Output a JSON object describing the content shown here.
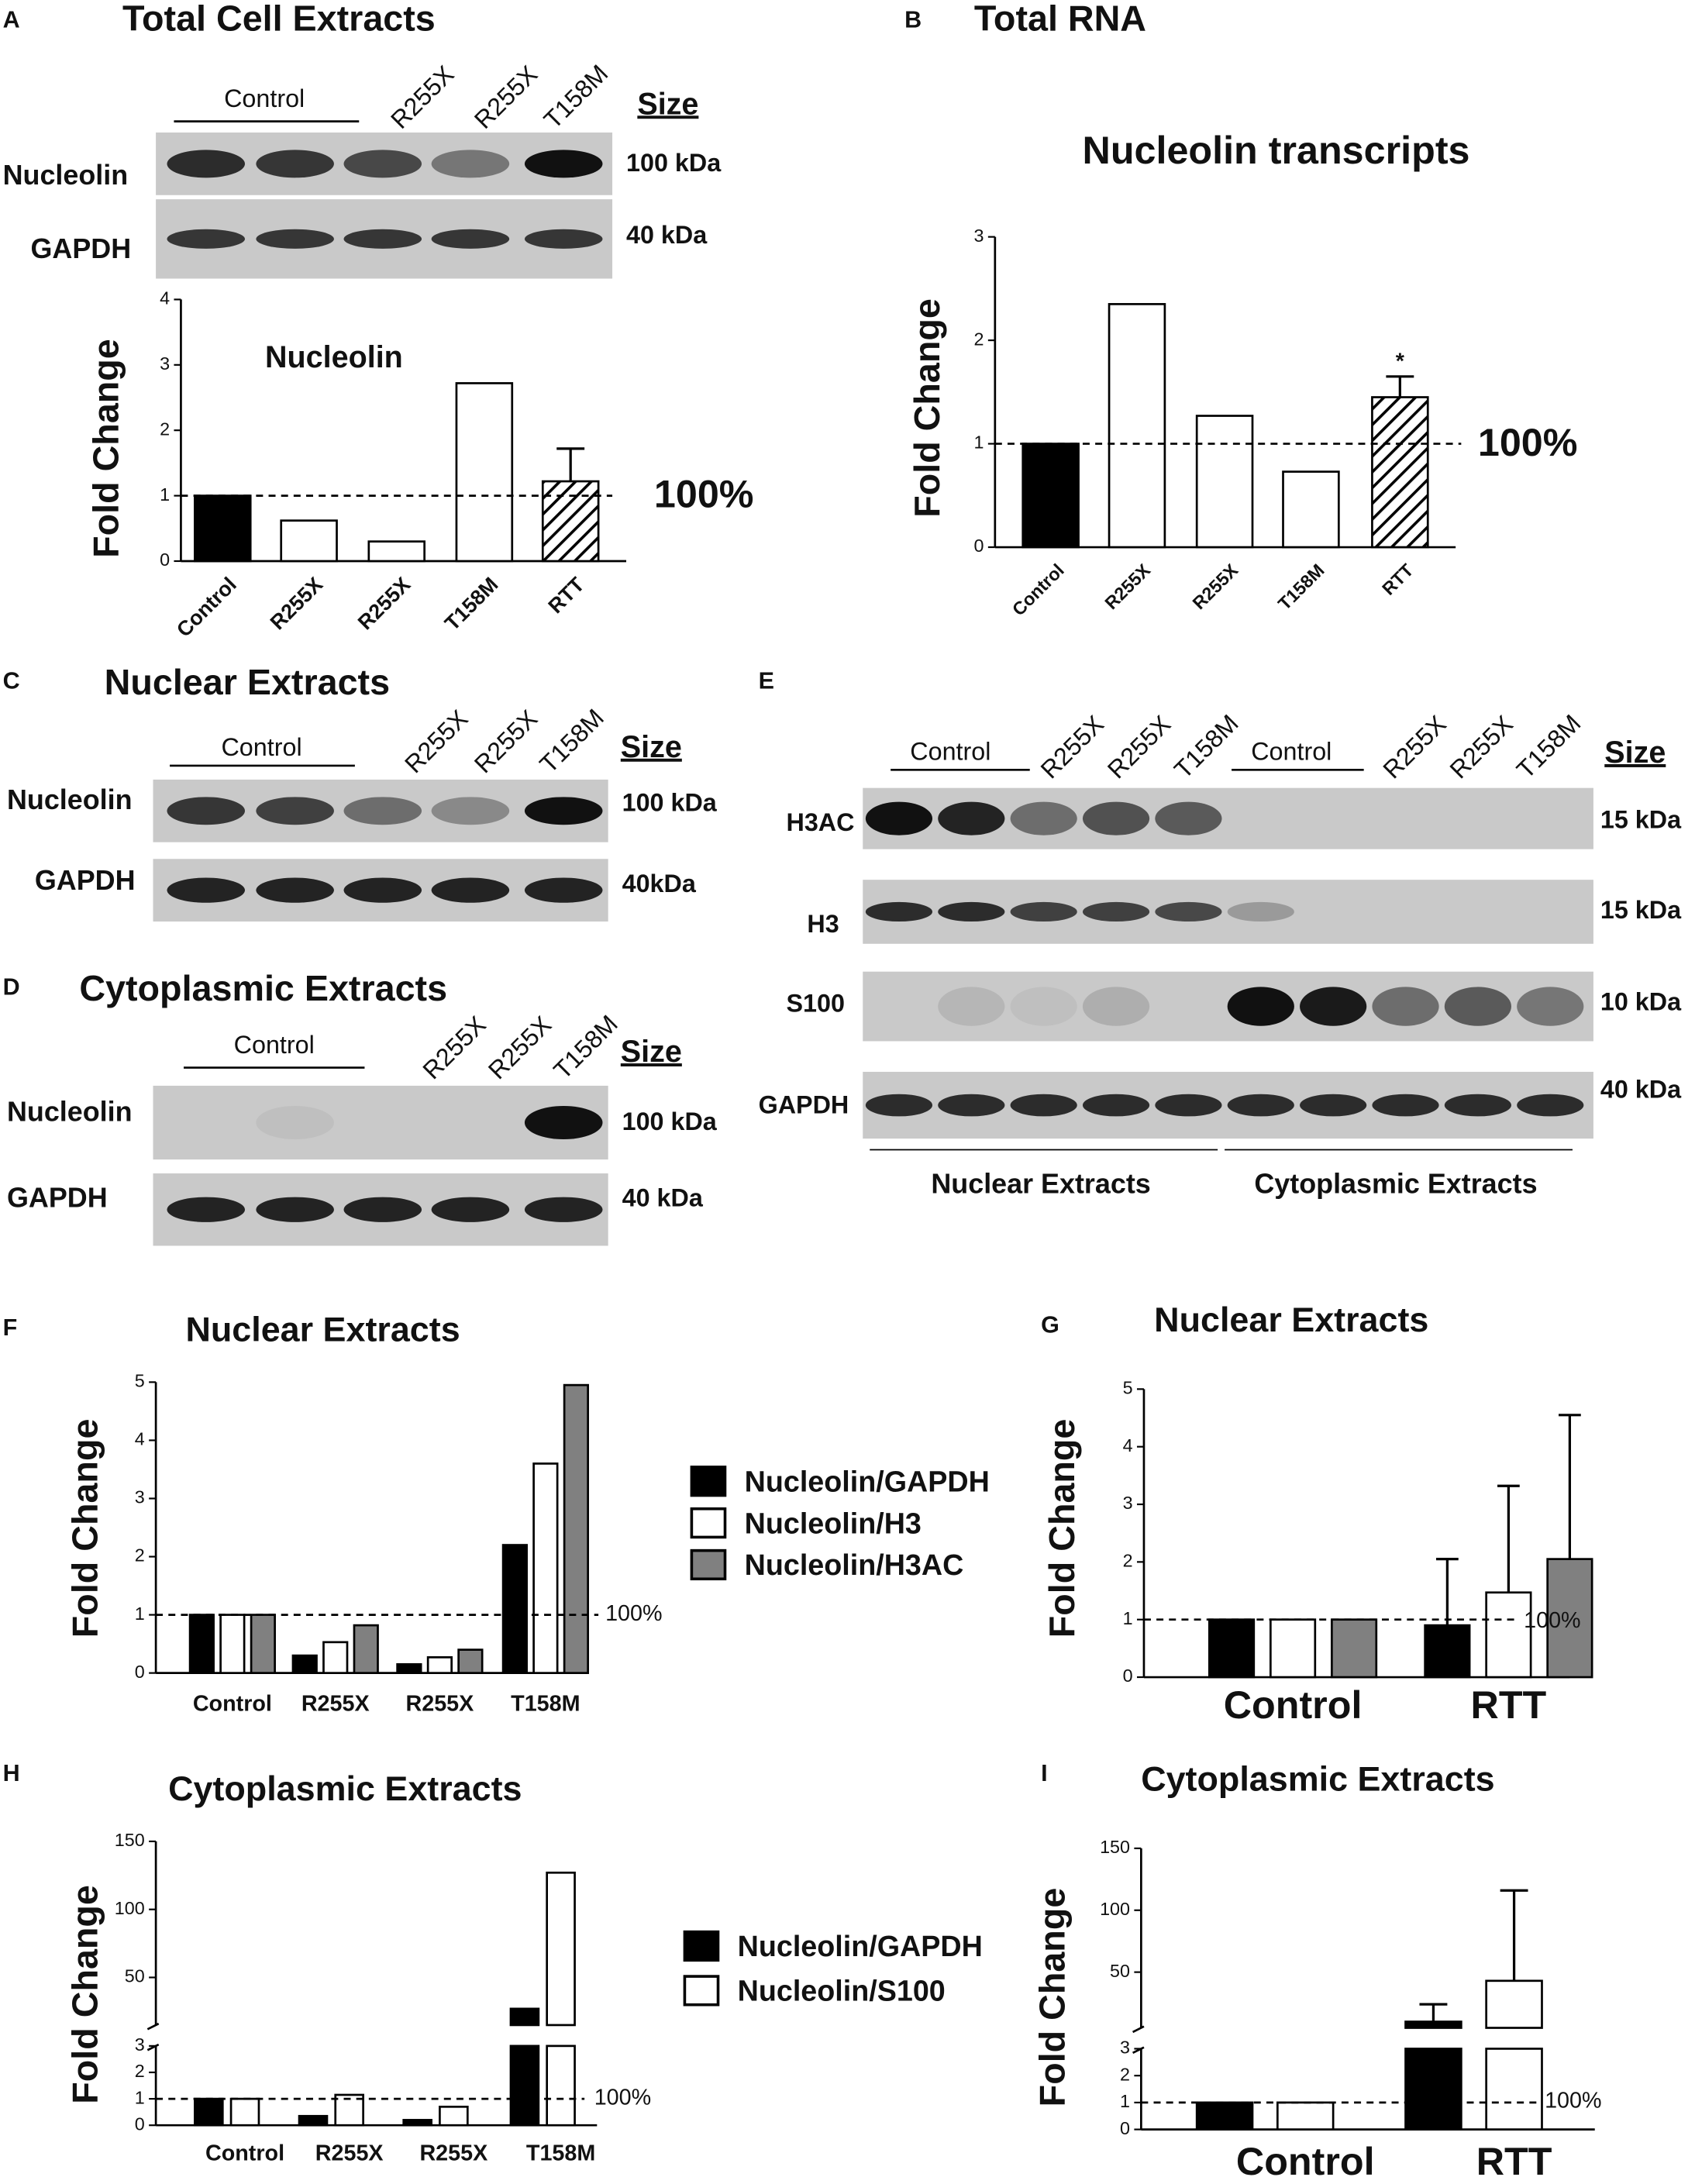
{
  "blots": {
    "A": {
      "panel": "A",
      "title": "Total Cell Extracts",
      "group": "Control",
      "lanes": [
        "R255X",
        "R255X",
        "T158M"
      ],
      "size_header": "Size",
      "rows": [
        {
          "name": "Nucleolin",
          "size": "100 kDa"
        },
        {
          "name": "GAPDH",
          "size": "40 kDa"
        }
      ]
    },
    "B": {
      "panel": "B",
      "title": "Total RNA"
    },
    "C": {
      "panel": "C",
      "title": "Nuclear Extracts",
      "group": "Control",
      "lanes": [
        "R255X",
        "R255X",
        "T158M"
      ],
      "size_header": "Size",
      "rows": [
        {
          "name": "Nucleolin",
          "size": "100 kDa"
        },
        {
          "name": "GAPDH",
          "size": "40kDa"
        }
      ]
    },
    "D": {
      "panel": "D",
      "title": "Cytoplasmic Extracts",
      "group": "Control",
      "lanes": [
        "R255X",
        "R255X",
        "T158M"
      ],
      "size_header": "Size",
      "rows": [
        {
          "name": "Nucleolin",
          "size": "100 kDa"
        },
        {
          "name": "GAPDH",
          "size": "40 kDa"
        }
      ]
    },
    "E": {
      "panel": "E",
      "groups": [
        "Control",
        "Control"
      ],
      "lanes": [
        "R255X",
        "R255X",
        "T158M",
        "R255X",
        "R255X",
        "T158M"
      ],
      "size_header": "Size",
      "rows": [
        {
          "name": "H3AC",
          "size": "15 kDa"
        },
        {
          "name": "H3",
          "size": "15 kDa"
        },
        {
          "name": "S100",
          "size": "10 kDa"
        },
        {
          "name": "GAPDH",
          "size": "40 kDa"
        }
      ],
      "fractions": [
        "Nuclear Extracts",
        "Cytoplasmic Extracts"
      ]
    }
  },
  "chart_data": [
    {
      "type": "bar",
      "title": "Nucleolin",
      "y_label": "Fold Change",
      "categories": [
        "Control",
        "R255X",
        "R255X",
        "T158M",
        "RTT"
      ],
      "values": [
        1,
        0.62,
        0.3,
        2.72,
        1.22
      ],
      "errors": [
        null,
        null,
        null,
        null,
        0.5
      ],
      "colors": [
        "#000000",
        "#ffffff",
        "#ffffff",
        "#ffffff",
        "#ffffff"
      ],
      "hatched": [
        false,
        false,
        false,
        false,
        true
      ],
      "ylim": [
        0,
        4
      ],
      "yticks": [
        0,
        1,
        2,
        3,
        4
      ],
      "reference_line": {
        "value": 1,
        "label": "100%"
      }
    },
    {
      "type": "bar",
      "title": "Nucleolin transcripts",
      "y_label": "Fold Change",
      "categories": [
        "Control",
        "R255X",
        "R255X",
        "T158M",
        "RTT"
      ],
      "values": [
        1,
        2.35,
        1.27,
        0.73,
        1.45
      ],
      "errors": [
        null,
        null,
        null,
        null,
        0.2
      ],
      "annotation": "*",
      "colors": [
        "#000000",
        "#ffffff",
        "#ffffff",
        "#ffffff",
        "#ffffff"
      ],
      "hatched": [
        false,
        false,
        false,
        false,
        true
      ],
      "ylim": [
        0,
        3
      ],
      "yticks": [
        0,
        1,
        2,
        3
      ],
      "reference_line": {
        "value": 1,
        "label": "100%"
      }
    },
    {
      "type": "grouped_bar",
      "panel": "F",
      "title": "Nuclear Extracts",
      "y_label": "Fold Change",
      "categories": [
        "Control",
        "R255X",
        "R255X",
        "T158M"
      ],
      "series": [
        {
          "name": "Nucleolin/GAPDH",
          "color": "#000000",
          "values": [
            1,
            0.3,
            0.15,
            2.2
          ]
        },
        {
          "name": "Nucleolin/H3",
          "color": "#ffffff",
          "values": [
            1,
            0.53,
            0.27,
            3.6
          ]
        },
        {
          "name": "Nucleolin/H3AC",
          "color": "#808080",
          "values": [
            1,
            0.82,
            0.4,
            4.95
          ]
        }
      ],
      "ylim": [
        0,
        5
      ],
      "yticks": [
        0,
        1,
        2,
        3,
        4,
        5
      ],
      "reference_line": {
        "value": 1,
        "label": "100%"
      }
    },
    {
      "type": "grouped_bar",
      "panel": "G",
      "title": "Nuclear Extracts",
      "y_label": "Fold Change",
      "categories": [
        "Control",
        "RTT"
      ],
      "series": [
        {
          "color": "#000000",
          "values": [
            1,
            0.9
          ],
          "errors": [
            null,
            1.15
          ]
        },
        {
          "color": "#ffffff",
          "values": [
            1,
            1.47
          ],
          "errors": [
            null,
            1.85
          ]
        },
        {
          "color": "#808080",
          "values": [
            1,
            2.05
          ],
          "errors": [
            null,
            2.5
          ]
        }
      ],
      "ylim": [
        0,
        5
      ],
      "yticks": [
        0,
        1,
        2,
        3,
        4,
        5
      ],
      "reference_line": {
        "value": 1,
        "label": "100%"
      }
    },
    {
      "type": "grouped_bar",
      "panel": "H",
      "title": "Cytoplasmic Extracts",
      "y_label": "Fold Change",
      "categories": [
        "Control",
        "R255X",
        "R255X",
        "T158M"
      ],
      "series": [
        {
          "name": "Nucleolin/GAPDH",
          "color": "#000000",
          "values": [
            1,
            0.35,
            0.2,
            27
          ]
        },
        {
          "name": "Nucleolin/S100",
          "color": "#ffffff",
          "values": [
            1,
            1.15,
            0.7,
            127
          ]
        }
      ],
      "ylim": [
        0,
        150
      ],
      "ybreak": [
        3,
        15
      ],
      "yticks": [
        0,
        1,
        2,
        3,
        50,
        100,
        150
      ],
      "reference_line": {
        "value": 1,
        "label": "100%"
      }
    },
    {
      "type": "grouped_bar",
      "panel": "I",
      "title": "Cytoplasmic Extracts",
      "y_label": "Fold Change",
      "categories": [
        "Control",
        "RTT"
      ],
      "series": [
        {
          "color": "#000000",
          "values": [
            1,
            10
          ],
          "errors": [
            null,
            14
          ]
        },
        {
          "color": "#ffffff",
          "values": [
            1,
            43
          ],
          "errors": [
            null,
            73
          ]
        }
      ],
      "ylim": [
        0,
        150
      ],
      "ybreak": [
        3,
        5
      ],
      "yticks": [
        0,
        1,
        2,
        3,
        50,
        100,
        150
      ],
      "reference_line": {
        "value": 1,
        "label": "100%"
      }
    }
  ]
}
